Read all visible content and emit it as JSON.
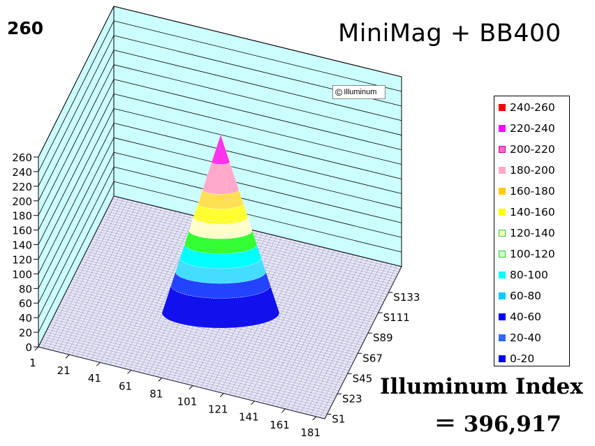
{
  "peak_label": "260",
  "title": "MiniMag + BB400",
  "copyright": {
    "symbol": "©",
    "text": "Illuminum"
  },
  "index": {
    "label": "Illuminum Index",
    "value": "＝ 396,917"
  },
  "chart_data": {
    "type": "surface3d",
    "title": "MiniMag + BB400",
    "z_ticks": [
      "0",
      "20",
      "40",
      "60",
      "80",
      "100",
      "120",
      "140",
      "160",
      "180",
      "200",
      "220",
      "240",
      "260"
    ],
    "zlim": [
      0,
      260
    ],
    "x_ticks": [
      "1",
      "21",
      "41",
      "61",
      "81",
      "101",
      "121",
      "141",
      "161",
      "181"
    ],
    "y_ticks": [
      "S1",
      "S23",
      "S45",
      "S67",
      "S89",
      "S111",
      "S133"
    ],
    "peak_value": 260,
    "legend": [
      {
        "label": "240-260",
        "color": "#ff0000"
      },
      {
        "label": "220-240",
        "color": "#ff00ff"
      },
      {
        "label": "200-220",
        "color": "#ff66cc"
      },
      {
        "label": "180-200",
        "color": "#ffa8c8"
      },
      {
        "label": "160-180",
        "color": "#ffcc00"
      },
      {
        "label": "140-160",
        "color": "#ffff00"
      },
      {
        "label": "120-140",
        "color": "#ffffc0"
      },
      {
        "label": "100-120",
        "color": "#ccffcc"
      },
      {
        "label": "80-100",
        "color": "#00ffff"
      },
      {
        "label": "60-80",
        "color": "#00ccff"
      },
      {
        "label": "40-60",
        "color": "#0000ff"
      },
      {
        "label": "20-40",
        "color": "#3366ff"
      },
      {
        "label": "0-20",
        "color": "#0000ee"
      }
    ],
    "cone_bands": [
      {
        "range": "220-260",
        "color": "#ff33ee"
      },
      {
        "range": "180-220",
        "color": "#ffaacc"
      },
      {
        "range": "160-180",
        "color": "#ffe055"
      },
      {
        "range": "140-160",
        "color": "#ffff33"
      },
      {
        "range": "120-140",
        "color": "#ffffcc"
      },
      {
        "range": "100-120",
        "color": "#33ff33"
      },
      {
        "range": "80-100",
        "color": "#00ffff"
      },
      {
        "range": "60-80",
        "color": "#44ddff"
      },
      {
        "range": "40-60",
        "color": "#2244ff"
      },
      {
        "range": "0-40",
        "color": "#1111ee"
      }
    ],
    "grid": true,
    "legend_position": "right"
  }
}
